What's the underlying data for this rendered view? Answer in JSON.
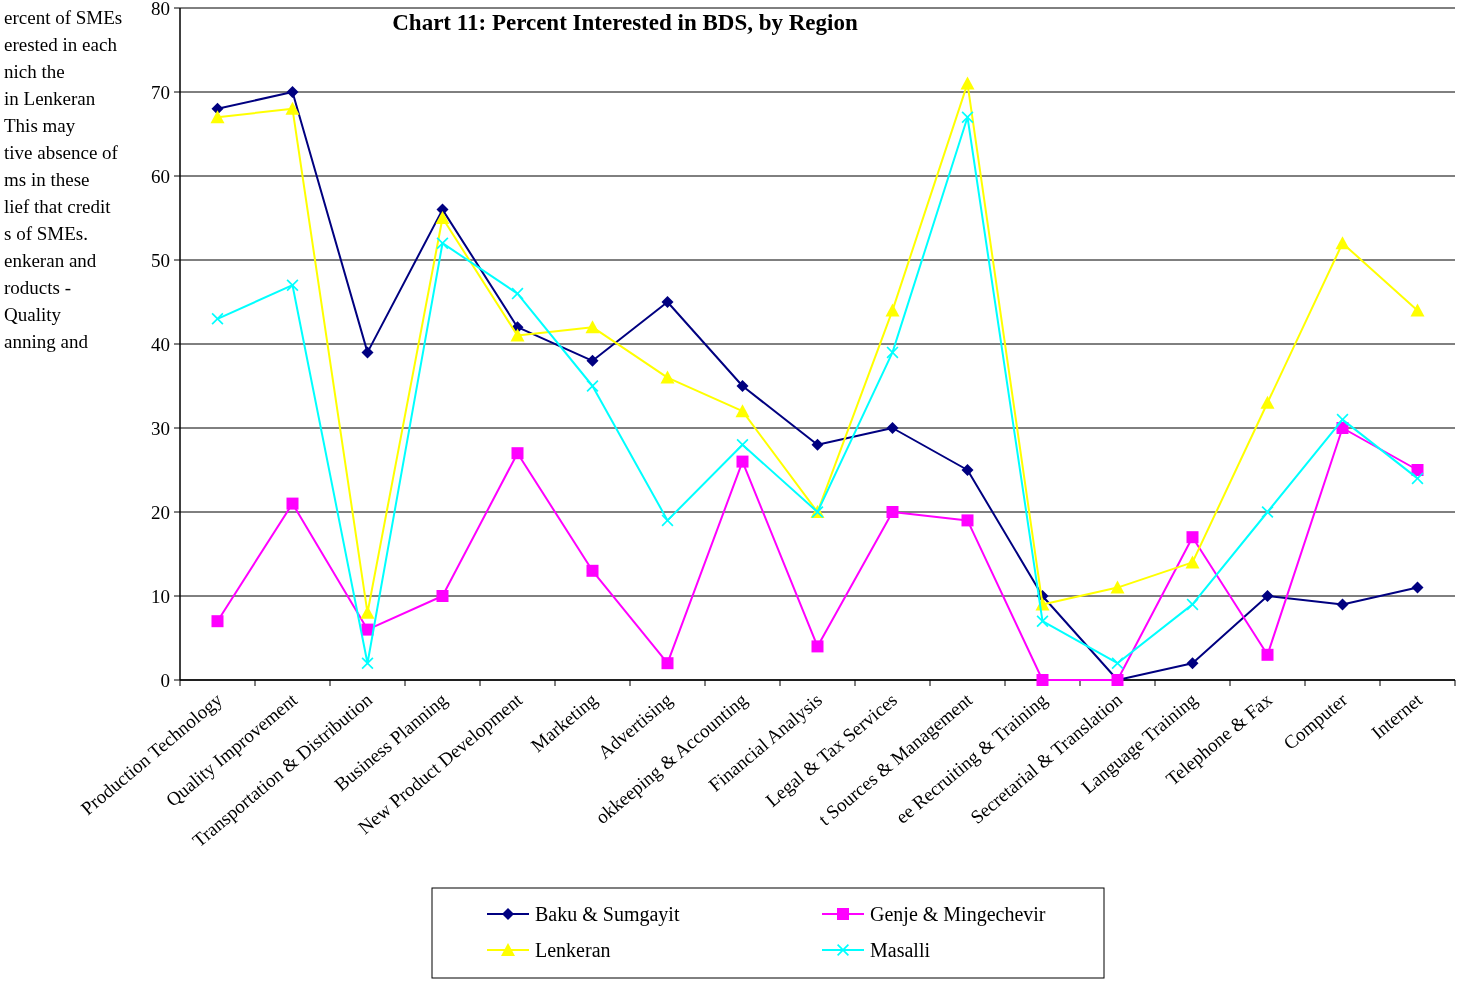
{
  "chart_data": {
    "type": "line",
    "title": "Chart 11: Percent Interested in BDS, by Region",
    "categories": [
      "Production Technology",
      "Quality Improvement",
      "Transportation & Distribution",
      "Business Planning",
      "New Product Development",
      "Marketing",
      "Advertising",
      "okkeeping & Accounting",
      "Financial Analysis",
      "Legal & Tax Services",
      "t Sources & Management",
      "ee Recruiting & Training",
      "Secretarial & Translation",
      "Language Training",
      "Telephone & Fax",
      "Computer",
      "Internet"
    ],
    "series": [
      {
        "name": "Baku & Sumgayit",
        "color": "#000080",
        "marker": "diamond",
        "values": [
          68,
          70,
          39,
          56,
          42,
          38,
          45,
          35,
          28,
          30,
          25,
          10,
          0,
          2,
          10,
          9,
          11
        ]
      },
      {
        "name": "Genje & Mingechevir",
        "color": "#ff00ff",
        "marker": "square",
        "values": [
          7,
          21,
          6,
          10,
          27,
          13,
          2,
          26,
          4,
          20,
          19,
          0,
          0,
          17,
          3,
          30,
          25
        ]
      },
      {
        "name": "Lenkeran",
        "color": "#ffff00",
        "marker": "triangle",
        "values": [
          67,
          68,
          8,
          55,
          41,
          42,
          36,
          32,
          20,
          44,
          71,
          9,
          11,
          14,
          33,
          52,
          44
        ]
      },
      {
        "name": "Masalli",
        "color": "#00ffff",
        "marker": "cross",
        "values": [
          43,
          47,
          2,
          52,
          46,
          35,
          19,
          28,
          20,
          39,
          67,
          7,
          2,
          9,
          20,
          31,
          24
        ]
      }
    ],
    "ylim": [
      0,
      80
    ],
    "yticks": [
      0,
      10,
      20,
      30,
      40,
      50,
      60,
      70,
      80
    ],
    "grid": "y",
    "legend": "bottom",
    "line_style": "solid",
    "annotations": [
      "ercent of SMEs",
      "erested in each",
      "nich the",
      "in Lenkeran",
      "This may",
      "tive absence of",
      "ms in these",
      "lief that credit",
      "s of SMEs.",
      "enkeran and",
      "roducts -",
      "Quality",
      "anning and"
    ]
  }
}
